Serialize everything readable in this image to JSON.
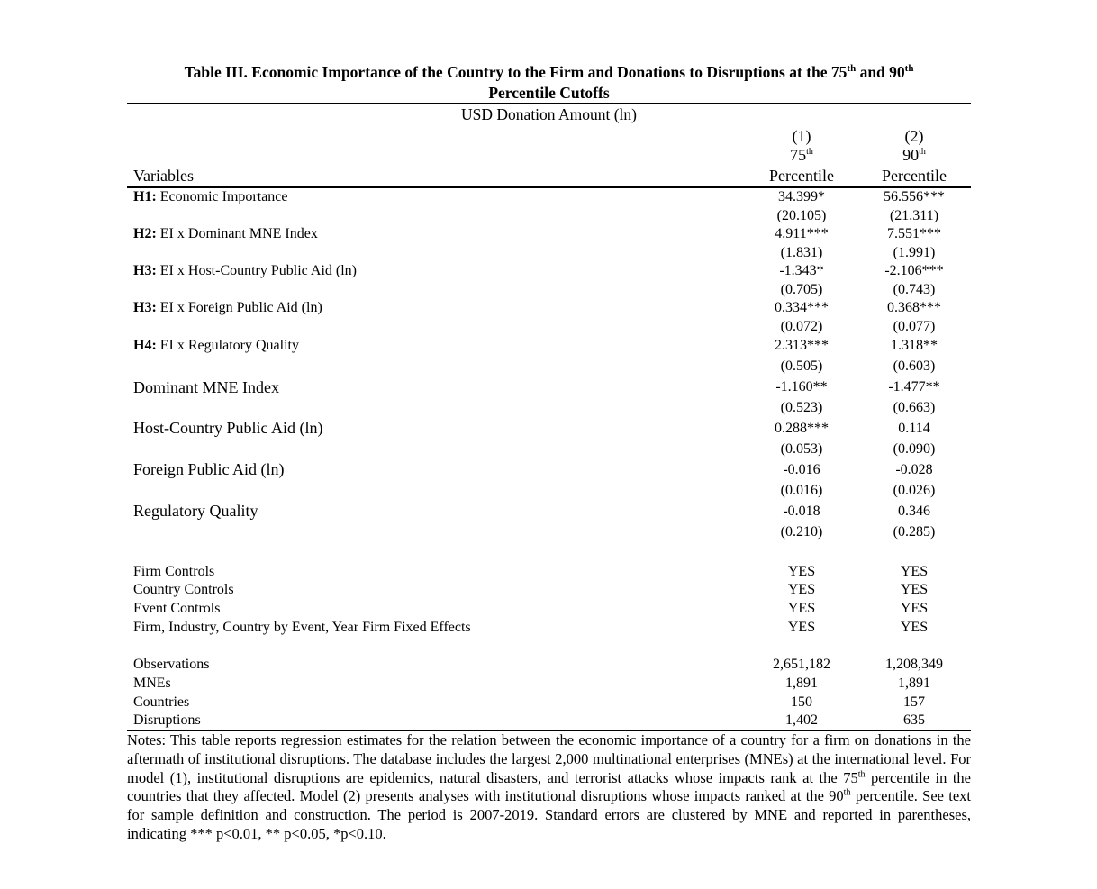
{
  "title": {
    "line1_main": "Table III. Economic Importance of the Country to the Firm and Donations to Disruptions at the 75",
    "line1_sup1": "th",
    "line1_mid": " and 90",
    "line1_sup2": "th",
    "line2": "Percentile Cutoffs"
  },
  "dependent_variable": "USD Donation Amount (ln)",
  "columns": [
    {
      "num": "(1)",
      "pct": "75",
      "pct_sup": "th",
      "label": "Percentile"
    },
    {
      "num": "(2)",
      "pct": "90",
      "pct_sup": "th",
      "label": "Percentile"
    }
  ],
  "variables_header": "Variables",
  "rows": [
    {
      "prefix": "H1:",
      "label": " Economic Importance",
      "c1": "34.399*",
      "se1": "(20.105)",
      "c2": "56.556***",
      "se2": "(21.311)"
    },
    {
      "prefix": "H2:",
      "label": " EI x Dominant MNE Index",
      "c1": "4.911***",
      "se1": "(1.831)",
      "c2": "7.551***",
      "se2": "(1.991)"
    },
    {
      "prefix": "H3:",
      "label": " EI x Host-Country Public Aid (ln)",
      "c1": "-1.343*",
      "se1": "(0.705)",
      "c2": "-2.106***",
      "se2": "(0.743)"
    },
    {
      "prefix": "H3:",
      "label": " EI x Foreign Public Aid (ln)",
      "c1": "0.334***",
      "se1": "(0.072)",
      "c2": "0.368***",
      "se2": "(0.077)"
    },
    {
      "prefix": "H4:",
      "label": " EI x Regulatory Quality",
      "c1": "2.313***",
      "se1": "(0.505)",
      "c2": "1.318**",
      "se2": "(0.603)"
    },
    {
      "prefix": "",
      "label": "Dominant MNE Index",
      "c1": "-1.160**",
      "se1": "(0.523)",
      "c2": "-1.477**",
      "se2": "(0.663)"
    },
    {
      "prefix": "",
      "label": "Host-Country Public Aid (ln)",
      "c1": "0.288***",
      "se1": "(0.053)",
      "c2": "0.114",
      "se2": "(0.090)"
    },
    {
      "prefix": "",
      "label": "Foreign Public Aid (ln)",
      "c1": "-0.016",
      "se1": "(0.016)",
      "c2": "-0.028",
      "se2": "(0.026)"
    },
    {
      "prefix": "",
      "label": "Regulatory Quality",
      "c1": "-0.018",
      "se1": "(0.210)",
      "c2": "0.346",
      "se2": "(0.285)"
    }
  ],
  "controls": [
    {
      "label": "Firm Controls",
      "c1": "YES",
      "c2": "YES"
    },
    {
      "label": "Country Controls",
      "c1": "YES",
      "c2": "YES"
    },
    {
      "label": "Event Controls",
      "c1": "YES",
      "c2": "YES"
    },
    {
      "label": "Firm, Industry, Country by Event, Year Firm Fixed Effects",
      "c1": "YES",
      "c2": "YES"
    }
  ],
  "stats": [
    {
      "label": "Observations",
      "c1": "2,651,182",
      "c2": "1,208,349"
    },
    {
      "label": "MNEs",
      "c1": "1,891",
      "c2": "1,891"
    },
    {
      "label": "Countries",
      "c1": "150",
      "c2": "157"
    },
    {
      "label": "Disruptions",
      "c1": "1,402",
      "c2": "635"
    }
  ],
  "notes": {
    "part1": "Notes: This table reports regression estimates for the relation between the economic importance of a country for a firm on donations in the aftermath of institutional disruptions. The database includes the largest 2,000 multinational enterprises (MNEs) at the international level. For model (1), institutional disruptions are epidemics, natural disasters, and terrorist attacks whose impacts rank at the 75",
    "sup1": "th",
    "part2": " percentile in the countries that they affected. Model (2) presents analyses with institutional disruptions whose impacts ranked at the 90",
    "sup2": "th",
    "part3": " percentile. See text for sample definition and construction. The period is 2007-2019. Standard errors are clustered by MNE and reported in parentheses, indicating *** p<0.01, ** p<0.05, *p<0.10."
  }
}
